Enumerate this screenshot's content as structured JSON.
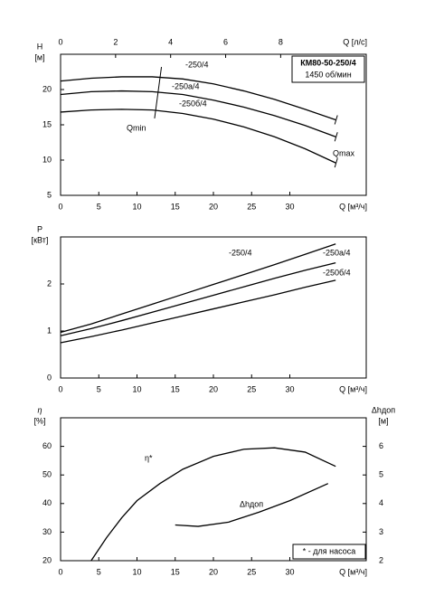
{
  "chart_data": [
    {
      "type": "line",
      "title": "КМ80-50-250/4",
      "subtitle": "1450 об/мин",
      "xlabel": "Q [м³/ч]",
      "xlim": [
        0,
        40
      ],
      "xticks": [
        0,
        5,
        10,
        15,
        20,
        25,
        30
      ],
      "x2label": "Q [л/с]",
      "x2lim": [
        0,
        11.11
      ],
      "x2ticks": [
        0,
        2,
        4,
        6,
        8
      ],
      "ylabel": "H",
      "yunit": "[м]",
      "ylim": [
        5,
        25
      ],
      "yticks": [
        5,
        10,
        15,
        20
      ],
      "series": [
        {
          "name": "-250/4",
          "color": "#000000",
          "x": [
            0,
            4,
            8,
            12,
            16,
            20,
            24,
            28,
            32,
            36
          ],
          "values": [
            21.2,
            21.6,
            21.8,
            21.8,
            21.5,
            20.8,
            19.8,
            18.6,
            17.2,
            15.7
          ]
        },
        {
          "name": "-250а/4",
          "color": "#000000",
          "x": [
            0,
            4,
            8,
            12,
            16,
            20,
            24,
            28,
            32,
            36
          ],
          "values": [
            19.3,
            19.7,
            19.8,
            19.7,
            19.3,
            18.5,
            17.5,
            16.3,
            14.9,
            13.3
          ]
        },
        {
          "name": "-250б/4",
          "color": "#000000",
          "x": [
            0,
            4,
            8,
            12,
            16,
            20,
            24,
            28,
            32,
            36
          ],
          "values": [
            16.8,
            17.1,
            17.2,
            17.1,
            16.6,
            15.8,
            14.7,
            13.3,
            11.6,
            9.6
          ]
        }
      ],
      "qmin": {
        "label": "Qmin",
        "x": [
          13.2,
          12.3
        ],
        "values": [
          23.2,
          15.9
        ]
      },
      "qmax_label": "Qmax"
    },
    {
      "type": "line",
      "xlabel": "Q [м³/ч]",
      "xlim": [
        0,
        40
      ],
      "xticks": [
        0,
        5,
        10,
        15,
        20,
        25,
        30
      ],
      "ylabel": "P",
      "yunit": "[кВт]",
      "ylim": [
        0,
        3
      ],
      "yticks": [
        0,
        1,
        2
      ],
      "series": [
        {
          "name": "-250/4",
          "color": "#000000",
          "x": [
            0,
            4,
            8,
            12,
            16,
            20,
            24,
            28,
            32,
            36
          ],
          "values": [
            0.97,
            1.15,
            1.36,
            1.57,
            1.78,
            1.99,
            2.2,
            2.41,
            2.63,
            2.85
          ]
        },
        {
          "name": "-250а/4",
          "color": "#000000",
          "x": [
            0,
            4,
            8,
            12,
            16,
            20,
            24,
            28,
            32,
            36
          ],
          "values": [
            0.9,
            1.05,
            1.22,
            1.4,
            1.58,
            1.76,
            1.94,
            2.12,
            2.29,
            2.45
          ]
        },
        {
          "name": "-250б/4",
          "color": "#000000",
          "x": [
            0,
            4,
            8,
            12,
            16,
            20,
            24,
            28,
            32,
            36
          ],
          "values": [
            0.75,
            0.88,
            1.02,
            1.17,
            1.32,
            1.47,
            1.62,
            1.77,
            1.93,
            2.08
          ]
        }
      ]
    },
    {
      "type": "line",
      "xlabel": "Q [м³/ч]",
      "xlim": [
        0,
        40
      ],
      "xticks": [
        0,
        5,
        10,
        15,
        20,
        25,
        30
      ],
      "ylabel": "η",
      "yunit": "[%]",
      "ylim": [
        20,
        70
      ],
      "yticks": [
        20,
        30,
        40,
        50,
        60
      ],
      "y2label": "Δhдоп",
      "y2unit": "[м]",
      "y2lim": [
        2,
        7
      ],
      "y2ticks": [
        2,
        3,
        4,
        5,
        6
      ],
      "series": [
        {
          "name": "η*",
          "color": "#000000",
          "x": [
            4,
            6,
            8,
            10,
            13,
            16,
            20,
            24,
            28,
            32,
            36
          ],
          "values": [
            20,
            28,
            35,
            41,
            47,
            52,
            56.5,
            59,
            59.5,
            58,
            53
          ]
        },
        {
          "name": "Δhдоп",
          "color": "#000000",
          "axis": "y2",
          "x": [
            15,
            18,
            22,
            26,
            30,
            35
          ],
          "values": [
            3.25,
            3.2,
            3.35,
            3.7,
            4.1,
            4.7
          ]
        }
      ],
      "note": "* - для насоса"
    }
  ]
}
